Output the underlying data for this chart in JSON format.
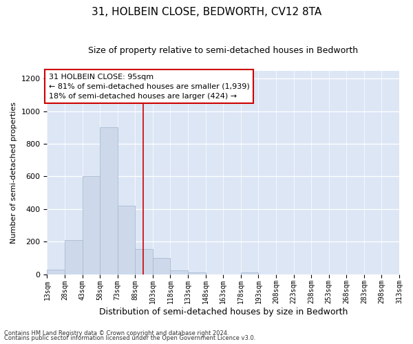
{
  "title": "31, HOLBEIN CLOSE, BEDWORTH, CV12 8TA",
  "subtitle": "Size of property relative to semi-detached houses in Bedworth",
  "xlabel": "Distribution of semi-detached houses by size in Bedworth",
  "ylabel": "Number of semi-detached properties",
  "footnote1": "Contains HM Land Registry data © Crown copyright and database right 2024.",
  "footnote2": "Contains public sector information licensed under the Open Government Licence v3.0.",
  "annotation_title": "31 HOLBEIN CLOSE: 95sqm",
  "annotation_line1": "← 81% of semi-detached houses are smaller (1,939)",
  "annotation_line2": "18% of semi-detached houses are larger (424) →",
  "property_size": 95,
  "bin_edges": [
    13,
    28,
    43,
    58,
    73,
    88,
    103,
    118,
    133,
    148,
    163,
    178,
    193,
    208,
    223,
    238,
    253,
    268,
    283,
    298,
    313
  ],
  "bar_heights": [
    28,
    210,
    600,
    900,
    420,
    155,
    100,
    22,
    10,
    0,
    0,
    12,
    0,
    0,
    0,
    0,
    0,
    0,
    0,
    0
  ],
  "bar_color": "#cdd9ea",
  "bar_edge_color": "#aabbd4",
  "red_line_color": "#cc0000",
  "background_color": "#dce6f5",
  "fig_background": "#ffffff",
  "grid_color": "#ffffff",
  "ylim": [
    0,
    1250
  ],
  "yticks": [
    0,
    200,
    400,
    600,
    800,
    1000,
    1200
  ],
  "annotation_box_facecolor": "#ffffff",
  "annotation_box_edgecolor": "#cc0000",
  "title_fontsize": 11,
  "subtitle_fontsize": 9,
  "xlabel_fontsize": 9,
  "ylabel_fontsize": 8,
  "tick_label_fontsize": 7,
  "footnote_fontsize": 6,
  "annotation_fontsize": 8
}
